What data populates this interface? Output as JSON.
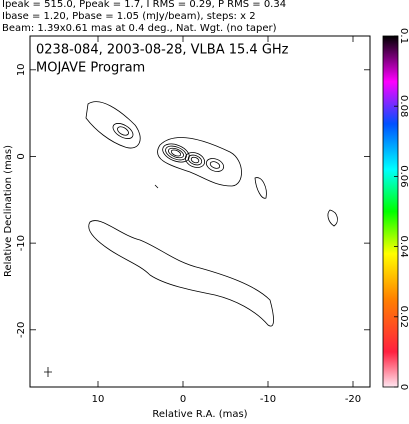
{
  "chart_data": {
    "type": "contour",
    "header": [
      "Ipeak = 515.0, Ppeak = 1.7, I RMS = 0.29, P RMS = 0.34",
      "Ibase = 1.20, Pbase = 1.05 (mJy/beam), steps: x 2",
      "Beam: 1.39x0.61 mas at 0.4 deg., Nat. Wgt. (no taper)"
    ],
    "title": "0238-084, 2003-08-28, VLBA 15.4 GHz",
    "subtitle": "MOJAVE Program",
    "x_label": "Relative R.A. (mas)",
    "y_label": "Relative Declination (mas)",
    "xlim": [
      18,
      -22
    ],
    "xticks": [
      10,
      0,
      -10,
      -20
    ],
    "ylim": [
      -26.6,
      13.9
    ],
    "yticks": [
      10,
      0,
      -10,
      -20
    ],
    "colorbar_lim": [
      0,
      0.1
    ],
    "colorbar_ticks": [
      0,
      0.02,
      0.04,
      0.06,
      0.08,
      0.1
    ]
  }
}
